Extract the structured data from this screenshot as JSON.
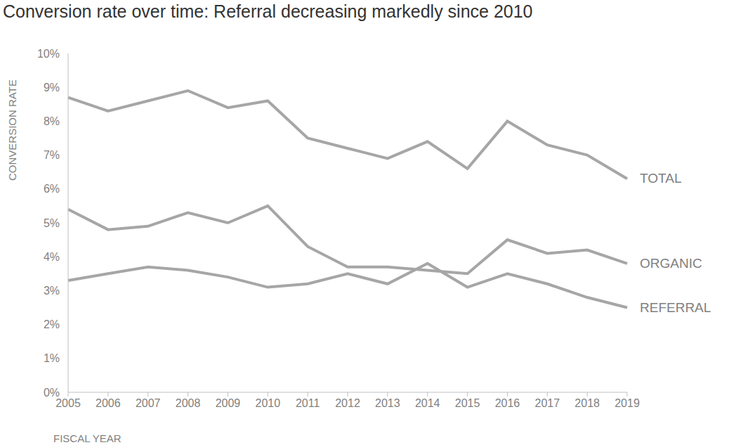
{
  "chart_data": {
    "type": "line",
    "title": "Conversion rate over time: Referral decreasing markedly since 2010",
    "x_label": "FISCAL YEAR",
    "y_label": "CONVERSION RATE",
    "categories": [
      "2005",
      "2006",
      "2007",
      "2008",
      "2009",
      "2010",
      "2011",
      "2012",
      "2013",
      "2014",
      "2015",
      "2016",
      "2017",
      "2018",
      "2019"
    ],
    "series": [
      {
        "name": "TOTAL",
        "color": "#a6a6a6",
        "values": [
          8.7,
          8.3,
          8.6,
          8.9,
          8.4,
          8.6,
          7.5,
          7.2,
          6.9,
          7.4,
          6.6,
          8.0,
          7.3,
          7.0,
          6.3
        ]
      },
      {
        "name": "ORGANIC",
        "color": "#a6a6a6",
        "values": [
          5.4,
          4.8,
          4.9,
          5.3,
          5.0,
          5.5,
          4.3,
          3.7,
          3.7,
          3.6,
          3.5,
          4.5,
          4.1,
          4.2,
          3.8
        ]
      },
      {
        "name": "REFERRAL",
        "color": "#a6a6a6",
        "values": [
          3.3,
          3.5,
          3.7,
          3.6,
          3.4,
          3.1,
          3.2,
          3.5,
          3.2,
          3.8,
          3.1,
          3.5,
          3.2,
          2.8,
          2.5
        ]
      }
    ],
    "ylim": [
      0,
      10
    ],
    "yticks": [
      {
        "value": 0,
        "label": "0%"
      },
      {
        "value": 1,
        "label": "1%"
      },
      {
        "value": 2,
        "label": "2%"
      },
      {
        "value": 3,
        "label": "3%"
      },
      {
        "value": 4,
        "label": "4%"
      },
      {
        "value": 5,
        "label": "5%"
      },
      {
        "value": 6,
        "label": "6%"
      },
      {
        "value": 7,
        "label": "7%"
      },
      {
        "value": 8,
        "label": "8%"
      },
      {
        "value": 9,
        "label": "9%"
      },
      {
        "value": 10,
        "label": "10%"
      }
    ],
    "grid": false
  }
}
